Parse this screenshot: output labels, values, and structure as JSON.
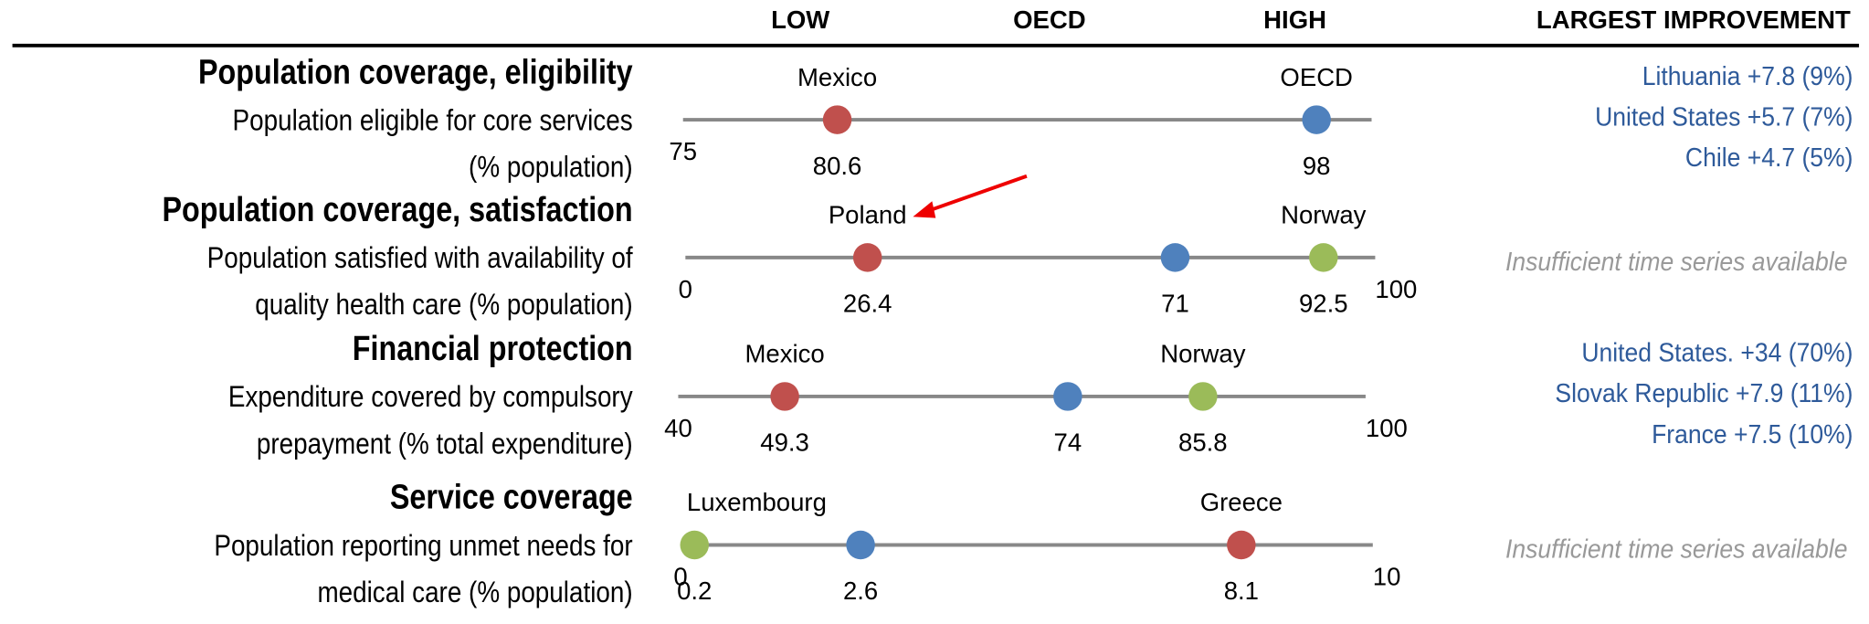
{
  "header": {
    "low": "LOW",
    "oecd": "OECD",
    "high": "HIGH",
    "improvement": "LARGEST IMPROVEMENT"
  },
  "chart_data": [
    {
      "type": "dot",
      "title": "Population coverage, eligibility",
      "subtitle": [
        "Population eligible for core services",
        "(% population)"
      ],
      "xlim": [
        75,
        100
      ],
      "xticks": [
        75
      ],
      "points": [
        {
          "label": "Mexico",
          "value": 80.6,
          "color": "#c0504d"
        },
        {
          "label": "OECD",
          "value": 98.0,
          "color": "#4f81bd"
        }
      ],
      "improvement": [
        "Lithuania +7.8 (9%)",
        "United States +5.7 (7%)",
        "Chile +4.7 (5%)"
      ]
    },
    {
      "type": "dot",
      "title": "Population coverage, satisfaction",
      "subtitle": [
        "Population satisfied with availability of",
        "quality health care (% population)"
      ],
      "xlim": [
        0,
        100
      ],
      "xticks": [
        0,
        100
      ],
      "points": [
        {
          "label": "Poland",
          "value": 26.4,
          "color": "#c0504d"
        },
        {
          "value": 71.0,
          "color": "#4f81bd"
        },
        {
          "label": "Norway",
          "value": 92.5,
          "color": "#9bbb59"
        }
      ],
      "note": "Insufficient time series available"
    },
    {
      "type": "dot",
      "title": "Financial protection",
      "subtitle": [
        "Expenditure covered by compulsory",
        "prepayment (% total expenditure)"
      ],
      "xlim": [
        40,
        100
      ],
      "xticks": [
        40,
        100
      ],
      "points": [
        {
          "label": "Mexico",
          "value": 49.3,
          "color": "#c0504d"
        },
        {
          "value": 74.0,
          "color": "#4f81bd"
        },
        {
          "label": "Norway",
          "value": 85.8,
          "color": "#9bbb59"
        }
      ],
      "improvement": [
        "United States. +34 (70%)",
        "Slovak Republic +7.9 (11%)",
        "France +7.5 (10%)"
      ]
    },
    {
      "type": "dot",
      "title": "Service coverage",
      "subtitle": [
        "Population reporting unmet needs for",
        "medical care (% population)"
      ],
      "xlim": [
        0,
        10
      ],
      "xticks": [
        0,
        10
      ],
      "points": [
        {
          "label": "Luxembourg",
          "value": 0.2,
          "color": "#9bbb59"
        },
        {
          "value": 2.6,
          "color": "#4f81bd"
        },
        {
          "label": "Greece",
          "value": 8.1,
          "color": "#c0504d"
        }
      ],
      "note": "Insufficient time series available"
    }
  ]
}
